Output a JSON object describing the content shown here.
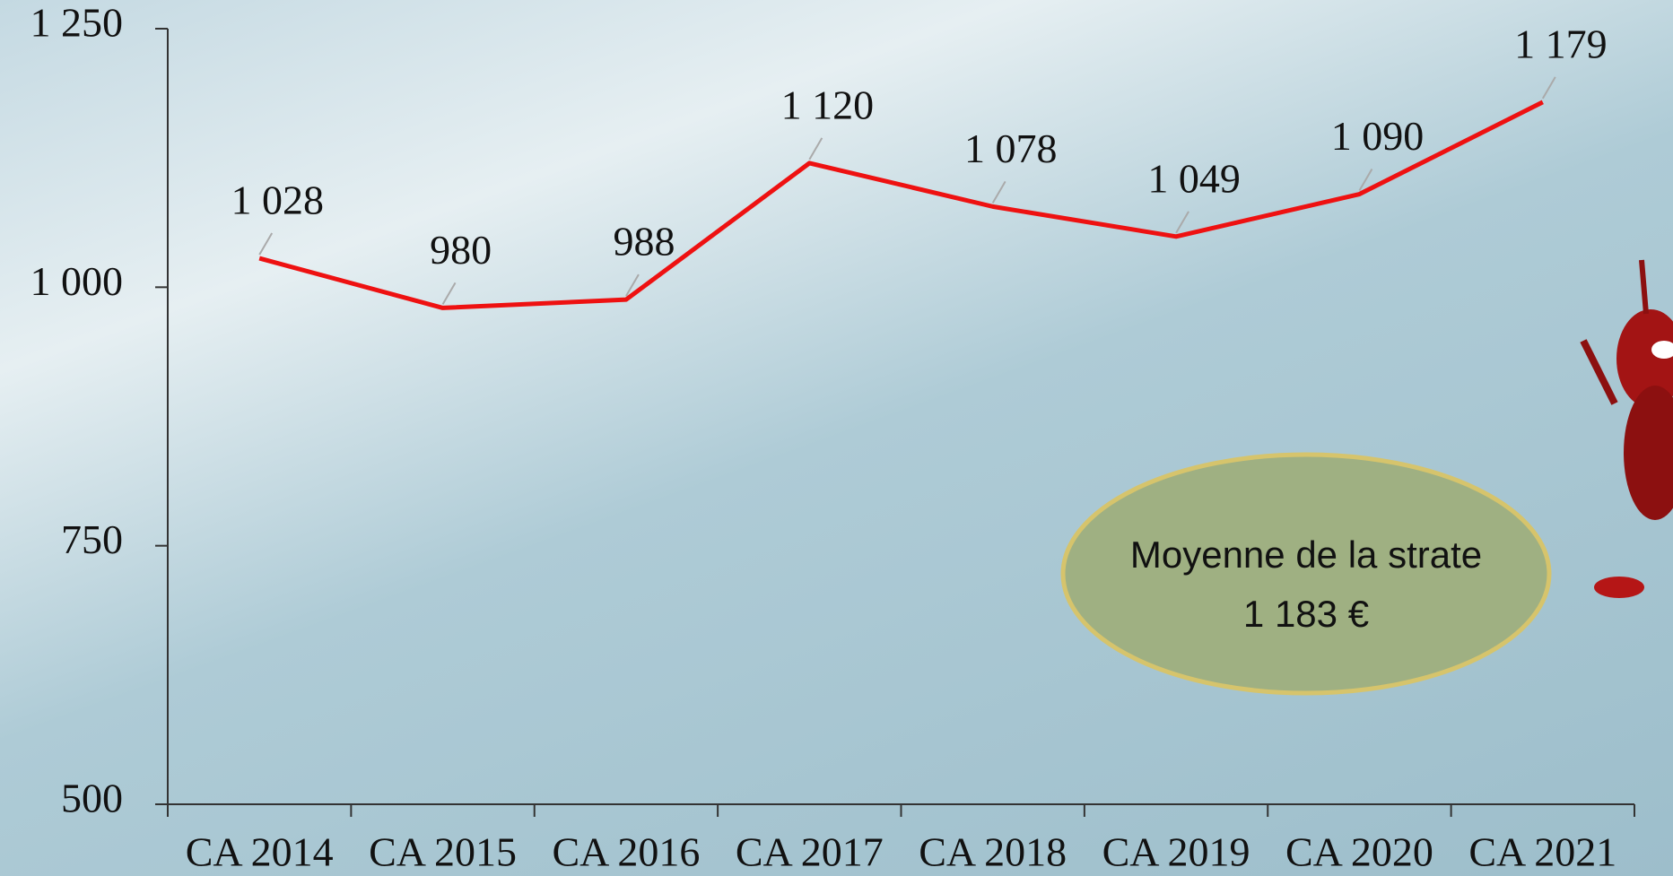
{
  "chart_data": {
    "type": "line",
    "categories": [
      "CA 2014",
      "CA 2015",
      "CA 2016",
      "CA 2017",
      "CA 2018",
      "CA 2019",
      "CA 2020",
      "CA 2021"
    ],
    "values": [
      1028,
      980,
      988,
      1120,
      1078,
      1049,
      1090,
      1179
    ],
    "value_labels": [
      "1 028",
      "980",
      "988",
      "1 120",
      "1 078",
      "1 049",
      "1 090",
      "1 179"
    ],
    "color": "#ee1111",
    "ylim": [
      500,
      1250
    ],
    "yticks": [
      {
        "value": 500,
        "label": "500"
      },
      {
        "value": 750,
        "label": "750"
      },
      {
        "value": 1000,
        "label": "1 000"
      },
      {
        "value": 1250,
        "label": "1 250"
      }
    ],
    "annotations": [
      "Moyenne de la strate",
      "1 183 €"
    ]
  }
}
